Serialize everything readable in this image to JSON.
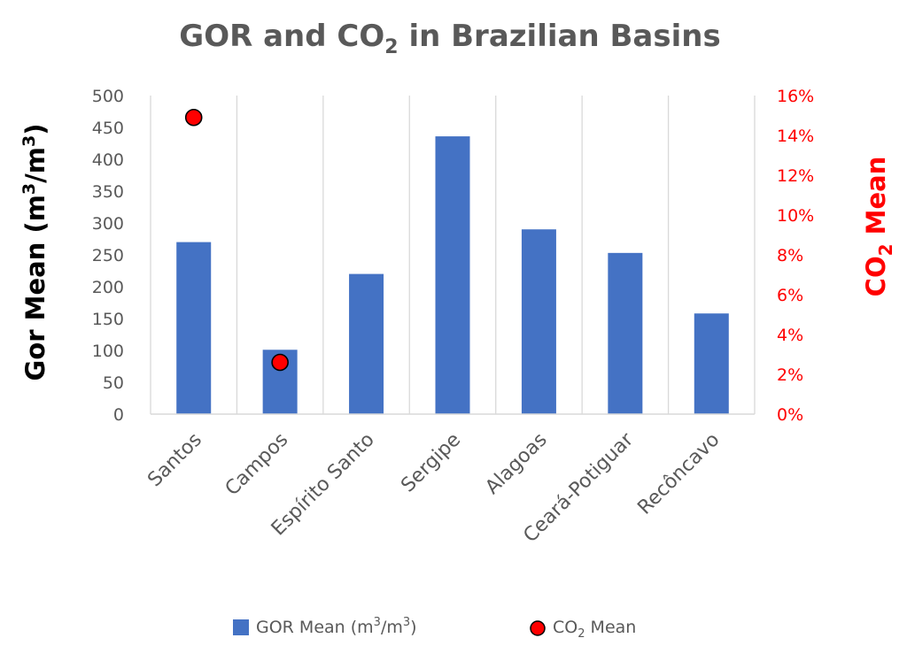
{
  "chart_data": {
    "type": "bar",
    "title_main": "GOR and CO",
    "title_sub": "2",
    "title_rest": " in Brazilian Basins",
    "categories": [
      "Santos",
      "Campos",
      "Espírito Santo",
      "Sergipe",
      "Alagoas",
      "Ceará-Potiguar",
      "Recôncavo"
    ],
    "series": [
      {
        "name_main": "GOR Mean (m",
        "name_sup1": "3",
        "name_mid": "/m",
        "name_sup2": "3",
        "name_end": ")",
        "type": "bar",
        "axis": "left",
        "color": "#4472c4",
        "values": [
          270,
          101,
          220,
          436,
          290,
          253,
          158
        ]
      },
      {
        "name_main": "CO",
        "name_sub": "2",
        "name_end": " Mean",
        "type": "scatter",
        "axis": "right",
        "color": "#ff0000",
        "values": [
          0.149,
          0.026,
          null,
          null,
          null,
          null,
          null
        ]
      }
    ],
    "ylabel_left": {
      "main": "Gor Mean (m",
      "sup1": "3",
      "mid": "/m",
      "sup2": "3",
      "end": ")"
    },
    "ylabel_right": {
      "main": "CO",
      "sub": "2",
      "end": " Mean"
    },
    "ylim_left": [
      0,
      500
    ],
    "yticks_left": [
      0,
      50,
      100,
      150,
      200,
      250,
      300,
      350,
      400,
      450,
      500
    ],
    "ylim_right": [
      0,
      0.16
    ],
    "yticks_right": [
      "0%",
      "2%",
      "4%",
      "6%",
      "8%",
      "10%",
      "12%",
      "14%",
      "16%"
    ],
    "grid": "vertical",
    "legend": "bottom",
    "colors": {
      "bar": "#4472c4",
      "marker": "#ff0000",
      "right_axis": "#ff0000",
      "text": "#595959",
      "grid": "#d9d9d9"
    }
  }
}
